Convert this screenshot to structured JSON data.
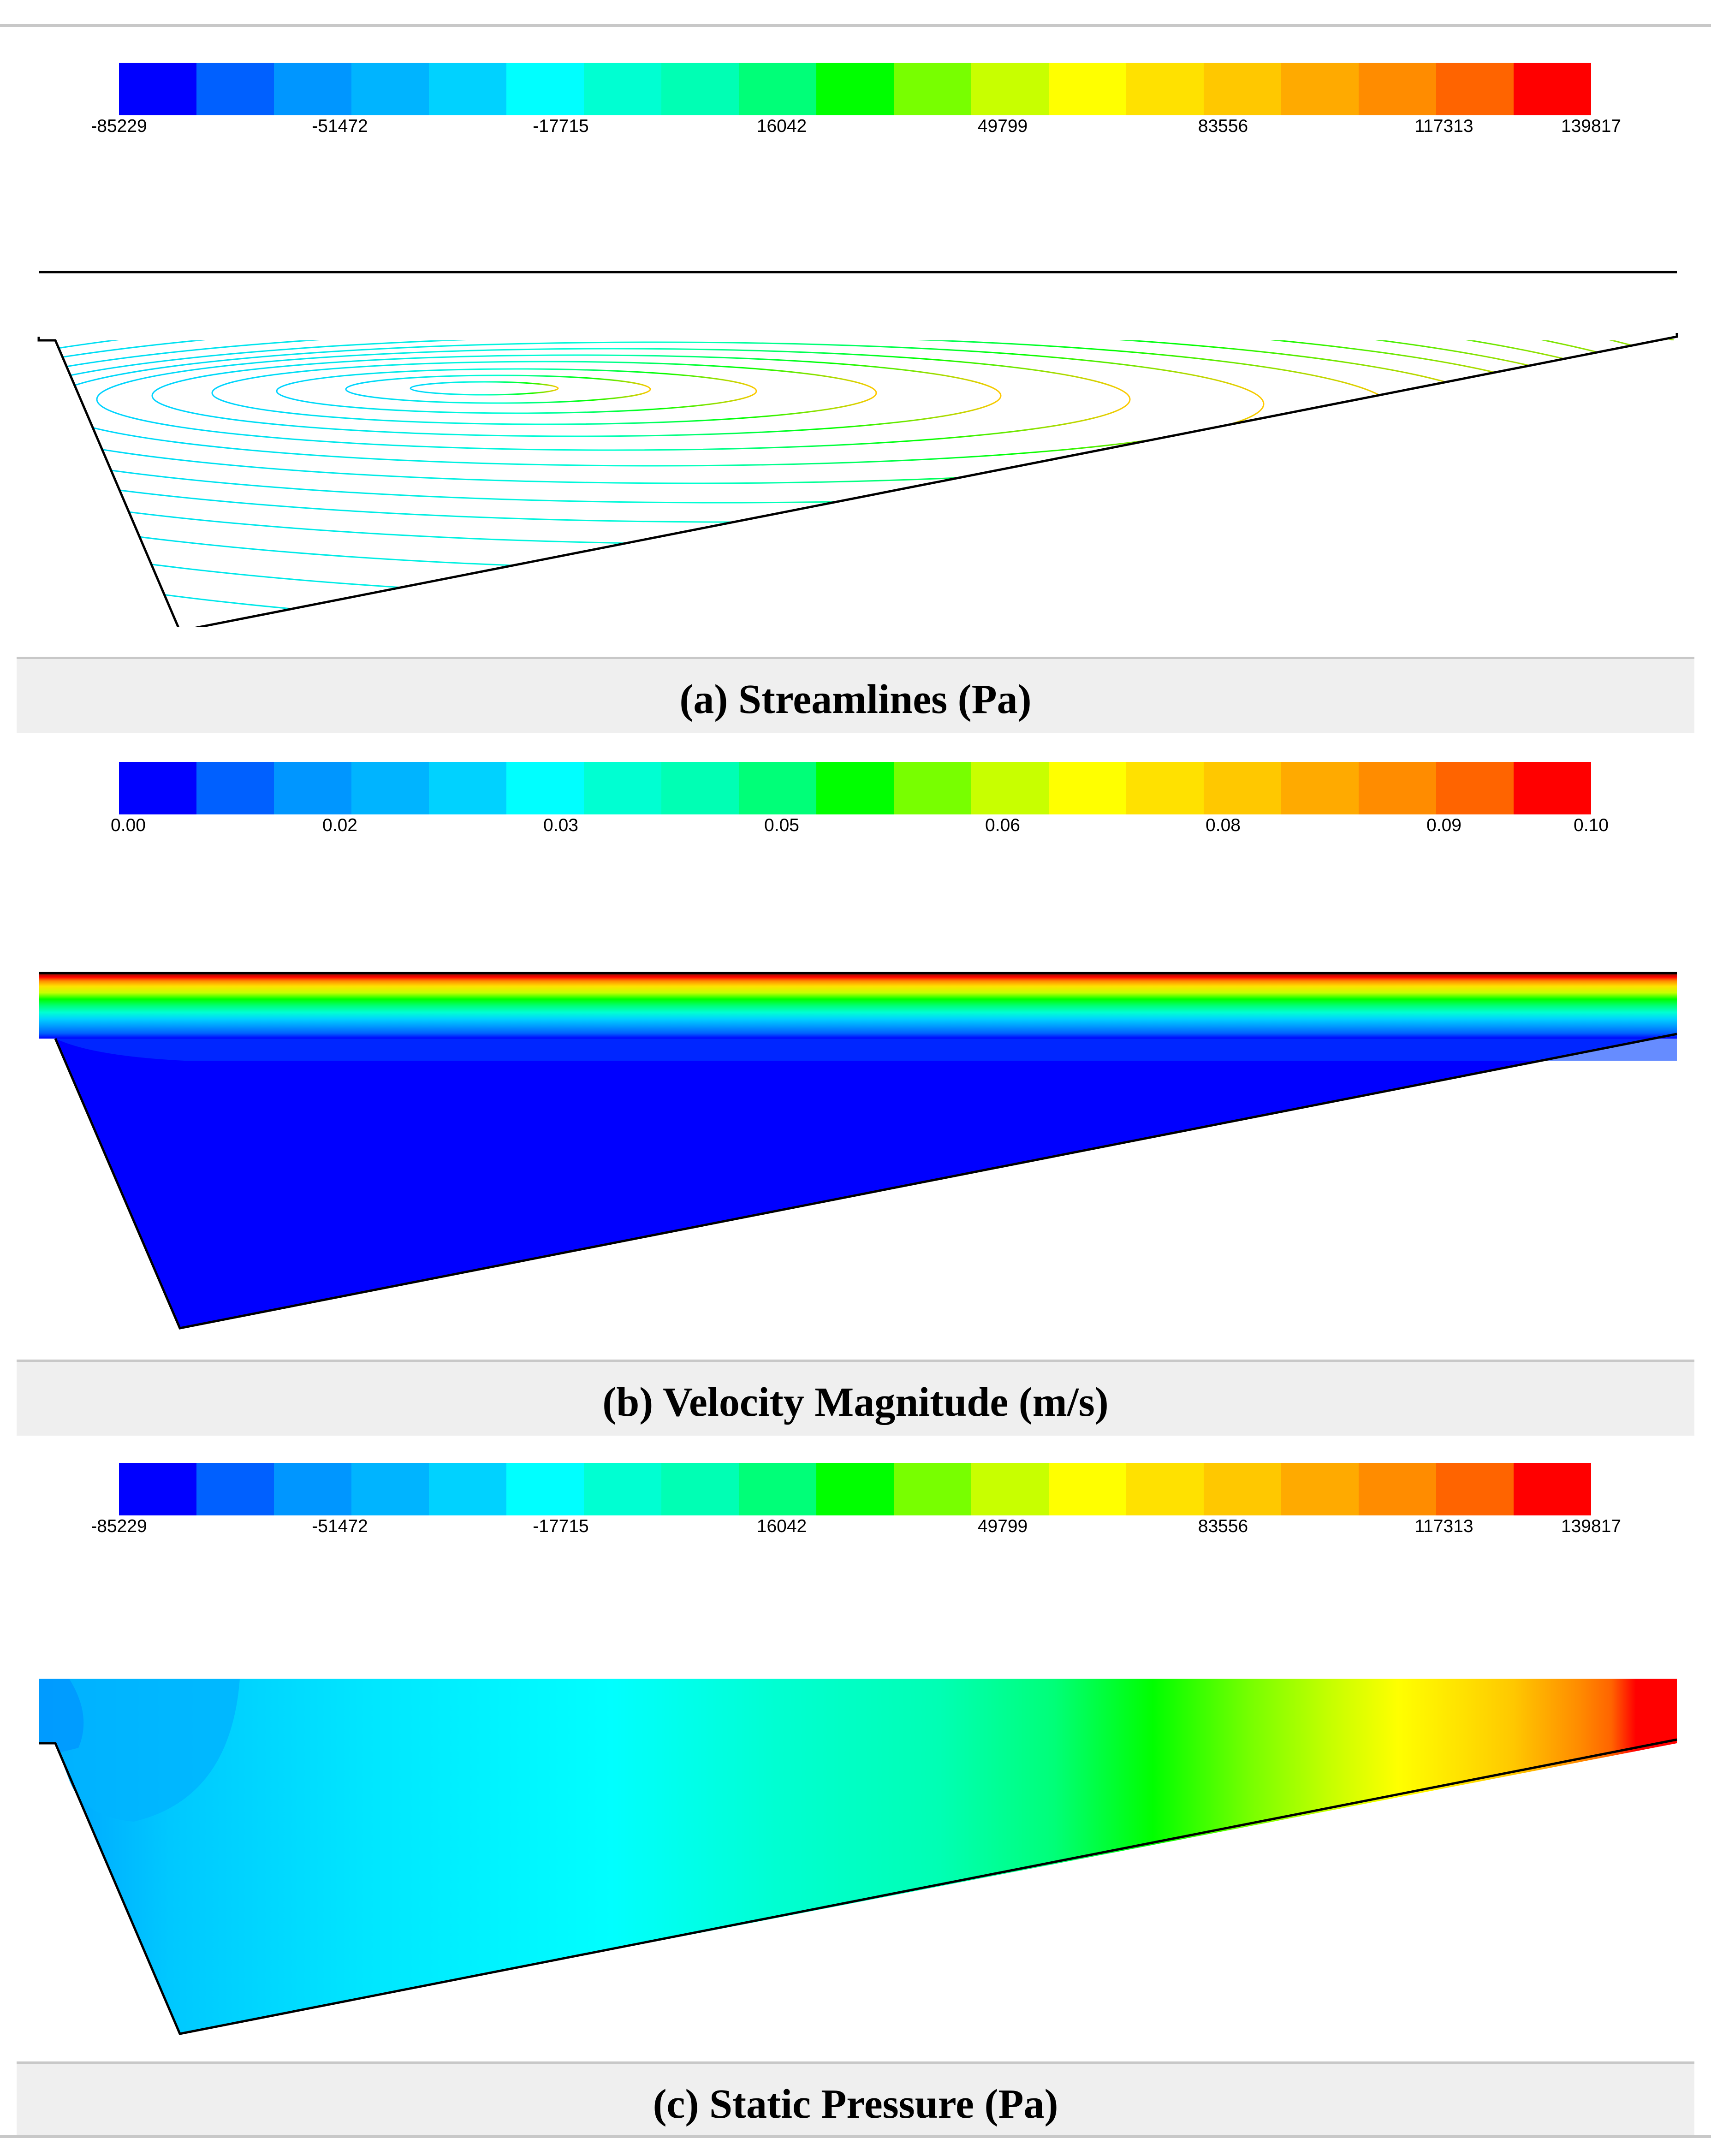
{
  "panels": [
    {
      "id": "a",
      "caption": "(a) Streamlines (Pa)",
      "colorbar_ticks": [
        "-85229",
        "-51472",
        "-17715",
        "16042",
        "49799",
        "83556",
        "117313",
        "139817"
      ]
    },
    {
      "id": "b",
      "caption": "(b) Velocity Magnitude (m/s)",
      "colorbar_ticks": [
        "0.00",
        "0.02",
        "0.03",
        "0.05",
        "0.06",
        "0.08",
        "0.09",
        "0.10"
      ]
    },
    {
      "id": "c",
      "caption": "(c) Static Pressure (Pa)",
      "colorbar_ticks": [
        "-85229",
        "-51472",
        "-17715",
        "16042",
        "49799",
        "83556",
        "117313",
        "139817"
      ]
    }
  ],
  "colormap": [
    "#0000ff",
    "#0060ff",
    "#0096ff",
    "#00b4ff",
    "#00d2ff",
    "#00ffff",
    "#00ffd2",
    "#00ffb4",
    "#00ff78",
    "#00ff00",
    "#78ff00",
    "#c8ff00",
    "#ffff00",
    "#ffe100",
    "#ffc800",
    "#ffaa00",
    "#ff8c00",
    "#ff6400",
    "#ff0000"
  ]
}
